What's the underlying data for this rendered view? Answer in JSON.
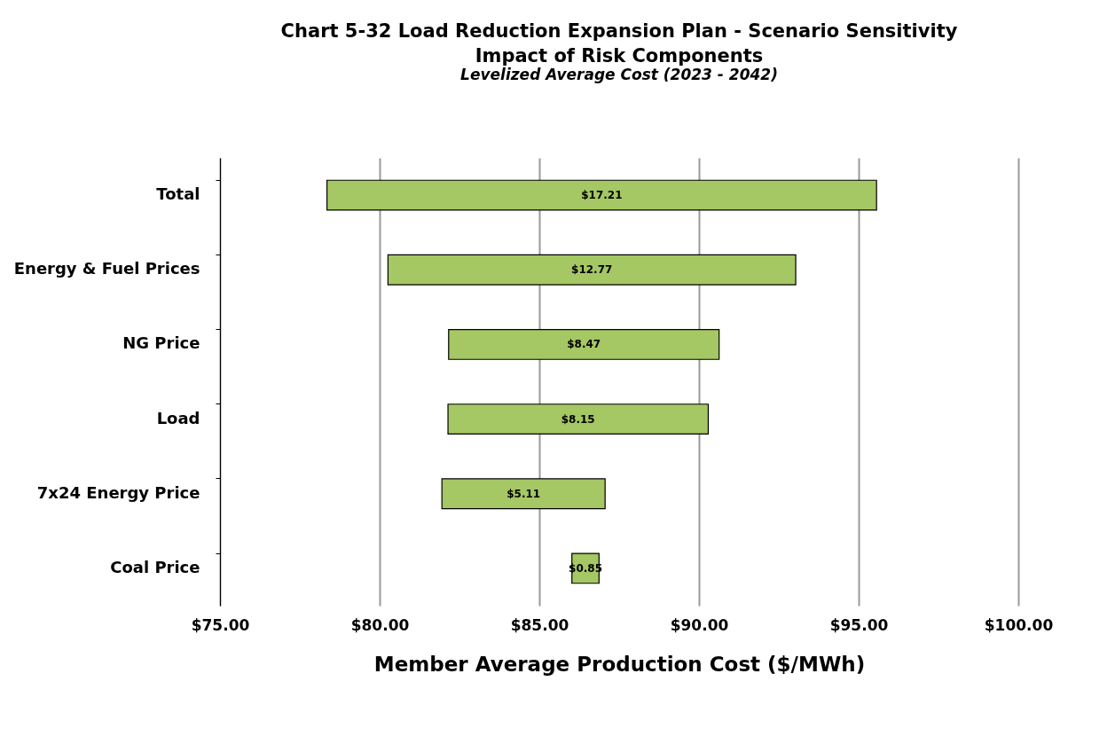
{
  "chart_data": {
    "type": "bar",
    "orientation": "horizontal",
    "title": "Chart 5-32 Load Reduction Expansion Plan - Scenario Sensitivity\nImpact of Risk Components",
    "subtitle": "Levelized Average Cost (2023 - 2042)",
    "xlabel": "Member Average Production Cost ($/MWh)",
    "categories": [
      "Total",
      "Energy & Fuel Prices",
      "NG Price",
      "Load",
      "7x24 Energy Price",
      "Coal Price"
    ],
    "base": [
      78.35,
      80.26,
      82.16,
      82.14,
      81.95,
      86.02
    ],
    "values": [
      17.21,
      12.77,
      8.47,
      8.15,
      5.11,
      0.85
    ],
    "value_labels": [
      "$17.21",
      "$12.77",
      "$8.47",
      "$8.15",
      "$5.11",
      "$0.85"
    ],
    "color": "#a5c764",
    "xlim": [
      75,
      100
    ],
    "xticks": [
      {
        "value": 75,
        "label": "$75.00"
      },
      {
        "value": 80,
        "label": "$80.00"
      },
      {
        "value": 85,
        "label": "$85.00"
      },
      {
        "value": 90,
        "label": "$90.00"
      },
      {
        "value": 95,
        "label": "$95.00"
      },
      {
        "value": 100,
        "label": "$100.00"
      }
    ],
    "grid": "x"
  }
}
